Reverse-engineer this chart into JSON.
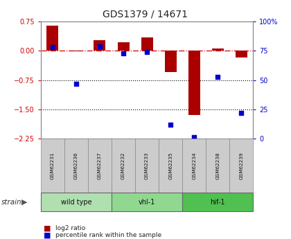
{
  "title": "GDS1379 / 14671",
  "samples": [
    "GSM62231",
    "GSM62236",
    "GSM62237",
    "GSM62232",
    "GSM62233",
    "GSM62235",
    "GSM62234",
    "GSM62238",
    "GSM62239"
  ],
  "log2_ratio": [
    0.65,
    -0.02,
    0.27,
    0.22,
    0.35,
    -0.55,
    -1.65,
    0.05,
    -0.18
  ],
  "percentile_rank": [
    78,
    47,
    79,
    73,
    74,
    12,
    1,
    53,
    22
  ],
  "groups": [
    {
      "label": "wild type",
      "start": 0,
      "end": 3,
      "color": "#b0e0b0"
    },
    {
      "label": "vhl-1",
      "start": 3,
      "end": 6,
      "color": "#90d890"
    },
    {
      "label": "hif-1",
      "start": 6,
      "end": 9,
      "color": "#50c050"
    }
  ],
  "ylim_left": [
    -2.25,
    0.75
  ],
  "ylim_right": [
    0,
    100
  ],
  "yticks_left": [
    0.75,
    0.0,
    -0.75,
    -1.5,
    -2.25
  ],
  "yticks_right": [
    100,
    75,
    50,
    25,
    0
  ],
  "bar_color": "#aa0000",
  "dot_color": "#0000cc",
  "zero_line_color": "#cc0000",
  "dotted_line_color": "#000000",
  "plot_bg": "#ffffff",
  "strain_label": "strain",
  "legend_bar": "log2 ratio",
  "legend_dot": "percentile rank within the sample",
  "bar_width": 0.5,
  "dot_size": 25
}
